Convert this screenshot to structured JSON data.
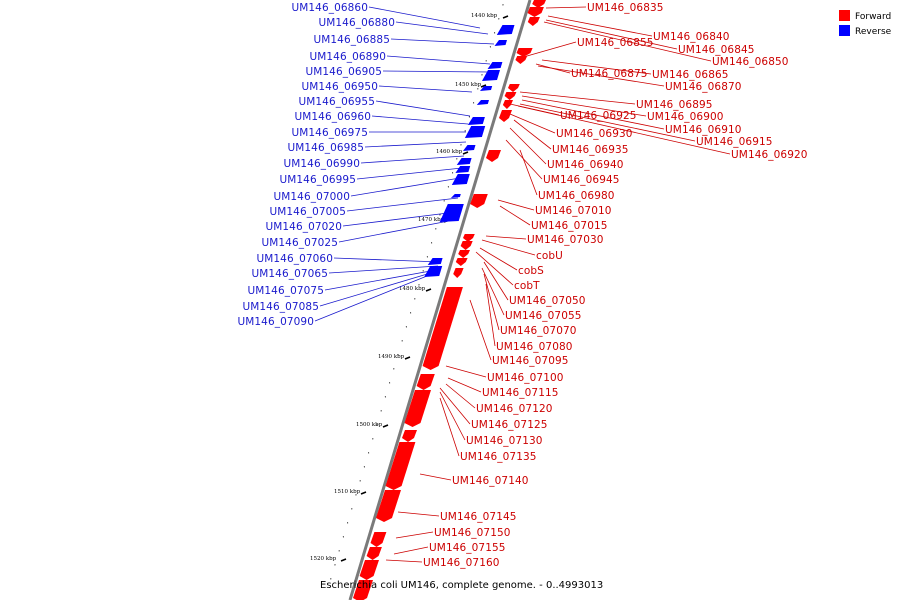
{
  "caption": "Escherichia coli UM146, complete genome. - 0..4993013",
  "legend": {
    "forward": {
      "label": "Forward",
      "color": "#ff0000"
    },
    "reverse": {
      "label": "Reverse",
      "color": "#0000ff"
    }
  },
  "colors": {
    "forward": "#ff0000",
    "reverse": "#0000ff",
    "backbone": "#7a7a7a",
    "forward_label": "#cc0000",
    "reverse_label": "#1a1acc"
  },
  "ticks": [
    "1440 kbp",
    "1450 kbp",
    "1460 kbp",
    "1470 kbp",
    "1480 kbp",
    "1490 kbp",
    "1500 kbp",
    "1510 kbp",
    "1520 kbp"
  ],
  "reverse_labels": [
    "UM146_06860",
    "UM146_06880",
    "UM146_06885",
    "UM146_06890",
    "UM146_06905",
    "UM146_06950",
    "UM146_06955",
    "UM146_06960",
    "UM146_06975",
    "UM146_06985",
    "UM146_06990",
    "UM146_06995",
    "UM146_07000",
    "UM146_07005",
    "UM146_07020",
    "UM146_07025",
    "UM146_07060",
    "UM146_07065",
    "UM146_07075",
    "UM146_07085",
    "UM146_07090"
  ],
  "forward_labels": [
    "UM146_06835",
    "UM146_06840",
    "UM146_06845",
    "UM146_06850",
    "UM146_06855",
    "UM146_06865",
    "UM146_06875",
    "UM146_06870",
    "UM146_06895",
    "UM146_06900",
    "UM146_06925",
    "UM146_06910",
    "UM146_06915",
    "UM146_06920",
    "UM146_06930",
    "UM146_06935",
    "UM146_06940",
    "UM146_06945",
    "UM146_06980",
    "UM146_07010",
    "UM146_07015",
    "UM146_07030",
    "cobU",
    "cobS",
    "cobT",
    "UM146_07050",
    "UM146_07055",
    "UM146_07070",
    "UM146_07080",
    "UM146_07095",
    "UM146_07100",
    "UM146_07115",
    "UM146_07120",
    "UM146_07125",
    "UM146_07130",
    "UM146_07135",
    "UM146_07140",
    "UM146_07145",
    "UM146_07150",
    "UM146_07155",
    "UM146_07160"
  ]
}
